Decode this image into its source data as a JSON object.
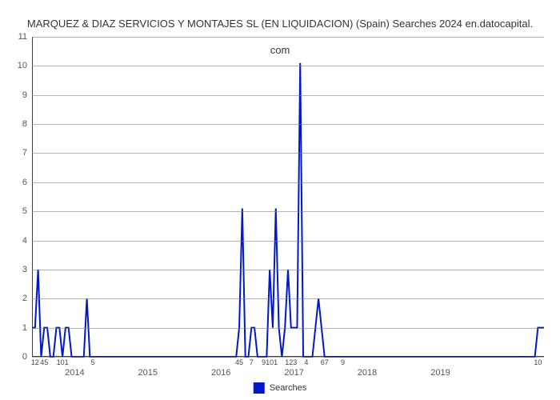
{
  "title_line1": "MARQUEZ & DIAZ SERVICIOS Y MONTAJES SL (EN LIQUIDACION) (Spain) Searches 2024 en.datocapital.",
  "title_line2": "com",
  "chart": {
    "type": "line",
    "background_color": "#ffffff",
    "grid_color": "#808080",
    "axis_color": "#404040",
    "line_color": "#0018cc",
    "line_width": 2,
    "y": {
      "min": 0,
      "max": 11,
      "ticks": [
        0,
        1,
        2,
        3,
        4,
        5,
        6,
        7,
        8,
        9,
        10,
        11
      ]
    },
    "x": {
      "min": 0,
      "max": 84,
      "major_ticks": [
        {
          "pos": 7,
          "label": "2014"
        },
        {
          "pos": 19,
          "label": "2015"
        },
        {
          "pos": 31,
          "label": "2016"
        },
        {
          "pos": 43,
          "label": "2017"
        },
        {
          "pos": 55,
          "label": "2018"
        },
        {
          "pos": 67,
          "label": "2019"
        }
      ],
      "minor_ticks": [
        {
          "pos": 0.5,
          "label": "12"
        },
        {
          "pos": 2,
          "label": "45"
        },
        {
          "pos": 5,
          "label": "101"
        },
        {
          "pos": 10,
          "label": "5"
        },
        {
          "pos": 34,
          "label": "45"
        },
        {
          "pos": 36,
          "label": "7"
        },
        {
          "pos": 39,
          "label": "9101"
        },
        {
          "pos": 42.5,
          "label": "123"
        },
        {
          "pos": 45,
          "label": "4"
        },
        {
          "pos": 48,
          "label": "67"
        },
        {
          "pos": 51,
          "label": "9"
        },
        {
          "pos": 83,
          "label": "10"
        }
      ]
    },
    "series": {
      "name": "Searches",
      "points": [
        [
          0,
          1
        ],
        [
          0.5,
          1
        ],
        [
          1,
          3
        ],
        [
          1.5,
          0
        ],
        [
          2,
          1
        ],
        [
          2.5,
          1
        ],
        [
          3,
          0
        ],
        [
          3.5,
          0
        ],
        [
          4,
          1
        ],
        [
          4.5,
          1
        ],
        [
          5,
          0
        ],
        [
          5.5,
          1
        ],
        [
          6,
          1
        ],
        [
          6.5,
          0
        ],
        [
          7,
          0
        ],
        [
          7.5,
          0
        ],
        [
          8,
          0
        ],
        [
          8.5,
          0
        ],
        [
          9,
          2
        ],
        [
          9.5,
          0
        ],
        [
          10,
          0
        ],
        [
          10.5,
          0
        ],
        [
          11,
          0
        ],
        [
          12,
          0
        ],
        [
          13,
          0
        ],
        [
          15,
          0
        ],
        [
          18,
          0
        ],
        [
          21,
          0
        ],
        [
          24,
          0
        ],
        [
          27,
          0
        ],
        [
          30,
          0
        ],
        [
          32,
          0
        ],
        [
          33,
          0
        ],
        [
          33.5,
          0
        ],
        [
          34,
          1
        ],
        [
          34.5,
          5.1
        ],
        [
          35,
          0
        ],
        [
          35.5,
          0
        ],
        [
          36,
          1
        ],
        [
          36.5,
          1
        ],
        [
          37,
          0
        ],
        [
          37.5,
          0
        ],
        [
          38,
          0
        ],
        [
          38.5,
          0
        ],
        [
          39,
          3
        ],
        [
          39.5,
          1
        ],
        [
          40,
          5.1
        ],
        [
          40.5,
          1
        ],
        [
          41,
          0
        ],
        [
          41.5,
          1
        ],
        [
          42,
          3
        ],
        [
          42.5,
          1
        ],
        [
          43,
          1
        ],
        [
          43.5,
          1
        ],
        [
          44,
          10.1
        ],
        [
          44.5,
          0
        ],
        [
          45,
          0
        ],
        [
          45.5,
          0
        ],
        [
          46,
          0
        ],
        [
          47,
          2
        ],
        [
          47.5,
          1
        ],
        [
          48,
          0
        ],
        [
          48.5,
          0
        ],
        [
          49,
          0
        ],
        [
          50,
          0
        ],
        [
          51,
          0
        ],
        [
          52,
          0
        ],
        [
          55,
          0
        ],
        [
          58,
          0
        ],
        [
          62,
          0
        ],
        [
          66,
          0
        ],
        [
          70,
          0
        ],
        [
          74,
          0
        ],
        [
          78,
          0
        ],
        [
          80,
          0
        ],
        [
          81,
          0
        ],
        [
          82,
          0
        ],
        [
          82.5,
          0
        ],
        [
          83,
          1
        ],
        [
          83.5,
          1
        ],
        [
          84,
          1
        ]
      ]
    }
  },
  "legend": {
    "label": "Searches",
    "swatch_color": "#0018cc"
  }
}
